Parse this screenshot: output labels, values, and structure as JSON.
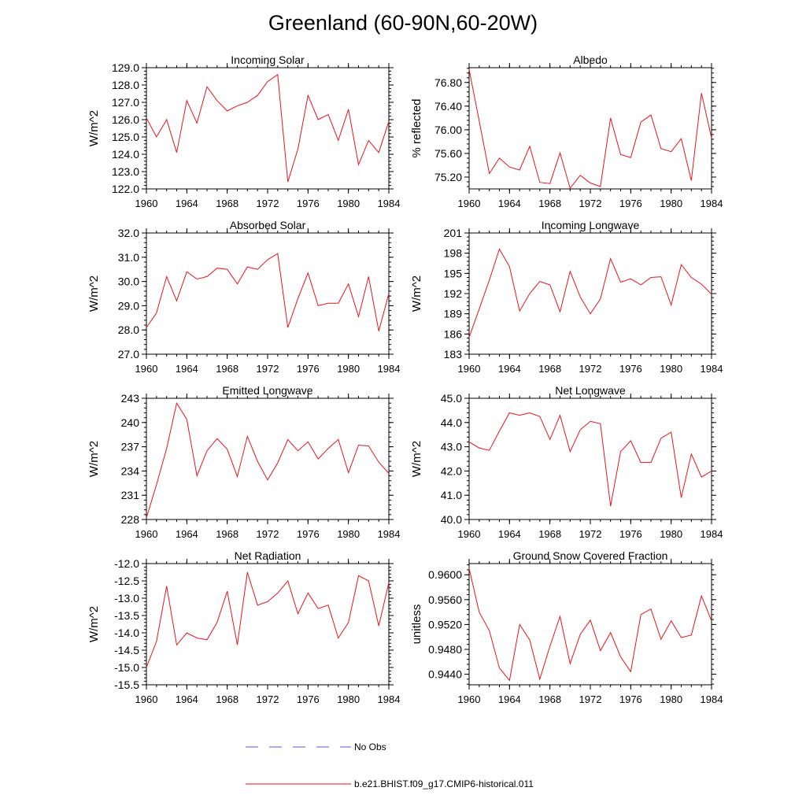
{
  "title": "Greenland (60-90N,60-20W)",
  "legend": {
    "obs_label": "No Obs",
    "model_label": "b.e21.BHIST.f09_g17.CMIP6-historical.011",
    "obs_color": "#5a5ad0",
    "model_color": "#e8141e"
  },
  "chart_data": [
    {
      "type": "line",
      "title": "Incoming Solar",
      "ylabel": "W/m^2",
      "xlim": [
        1960,
        1984
      ],
      "ylim": [
        122.0,
        129.0
      ],
      "yticks": [
        "122.0",
        "123.0",
        "124.0",
        "125.0",
        "126.0",
        "127.0",
        "128.0",
        "129.0"
      ],
      "xticks": [
        "1960",
        "1964",
        "1968",
        "1972",
        "1976",
        "1980",
        "1984"
      ],
      "x": [
        1960,
        1961,
        1962,
        1963,
        1964,
        1965,
        1966,
        1967,
        1968,
        1969,
        1970,
        1971,
        1972,
        1973,
        1974,
        1975,
        1976,
        1977,
        1978,
        1979,
        1980,
        1981,
        1982,
        1983,
        1984
      ],
      "series": [
        {
          "values": [
            126.1,
            125.0,
            126.0,
            124.1,
            127.1,
            125.8,
            127.9,
            127.1,
            126.5,
            126.8,
            127.0,
            127.4,
            128.2,
            128.6,
            122.4,
            124.3,
            127.4,
            126.0,
            126.3,
            124.8,
            126.6,
            123.4,
            124.8,
            124.1,
            125.9
          ]
        }
      ]
    },
    {
      "type": "line",
      "title": "Albedo",
      "ylabel": "% reflected",
      "xlim": [
        1960,
        1984
      ],
      "ylim": [
        75.0,
        77.05
      ],
      "yticks": [
        "75.20",
        "75.60",
        "76.00",
        "76.40",
        "76.80"
      ],
      "xticks": [
        "1960",
        "1964",
        "1968",
        "1972",
        "1976",
        "1980",
        "1984"
      ],
      "x": [
        1960,
        1961,
        1962,
        1963,
        1964,
        1965,
        1966,
        1967,
        1968,
        1969,
        1970,
        1971,
        1972,
        1973,
        1974,
        1975,
        1976,
        1977,
        1978,
        1979,
        1980,
        1981,
        1982,
        1983,
        1984
      ],
      "series": [
        {
          "values": [
            77.02,
            76.15,
            75.26,
            75.52,
            75.37,
            75.32,
            75.72,
            75.11,
            75.09,
            75.61,
            75.01,
            75.23,
            75.1,
            75.04,
            76.2,
            75.58,
            75.53,
            76.13,
            76.25,
            75.68,
            75.63,
            75.85,
            75.14,
            76.62,
            75.86
          ]
        }
      ]
    },
    {
      "type": "line",
      "title": "Absorbed Solar",
      "ylabel": "W/m^2",
      "xlim": [
        1960,
        1984
      ],
      "ylim": [
        27.0,
        32.0
      ],
      "yticks": [
        "27.0",
        "28.0",
        "29.0",
        "30.0",
        "31.0",
        "32.0"
      ],
      "xticks": [
        "1960",
        "1964",
        "1968",
        "1972",
        "1976",
        "1980",
        "1984"
      ],
      "x": [
        1960,
        1961,
        1962,
        1963,
        1964,
        1965,
        1966,
        1967,
        1968,
        1969,
        1970,
        1971,
        1972,
        1973,
        1974,
        1975,
        1976,
        1977,
        1978,
        1979,
        1980,
        1981,
        1982,
        1983,
        1984
      ],
      "series": [
        {
          "values": [
            28.1,
            28.7,
            30.2,
            29.2,
            30.4,
            30.1,
            30.2,
            30.55,
            30.5,
            29.9,
            30.6,
            30.5,
            30.9,
            31.15,
            28.1,
            29.3,
            30.35,
            29.0,
            29.1,
            29.1,
            29.9,
            28.55,
            30.2,
            27.95,
            29.5
          ]
        }
      ]
    },
    {
      "type": "line",
      "title": "Incoming Longwave",
      "ylabel": "W/m^2",
      "xlim": [
        1960,
        1984
      ],
      "ylim": [
        183,
        201
      ],
      "yticks": [
        "183",
        "186",
        "189",
        "192",
        "195",
        "198",
        "201"
      ],
      "xticks": [
        "1960",
        "1964",
        "1968",
        "1972",
        "1976",
        "1980",
        "1984"
      ],
      "x": [
        1960,
        1961,
        1962,
        1963,
        1964,
        1965,
        1966,
        1967,
        1968,
        1969,
        1970,
        1971,
        1972,
        1973,
        1974,
        1975,
        1976,
        1977,
        1978,
        1979,
        1980,
        1981,
        1982,
        1983,
        1984
      ],
      "series": [
        {
          "values": [
            185.5,
            189.7,
            194.0,
            198.6,
            196.0,
            189.4,
            192.0,
            193.8,
            193.3,
            189.3,
            195.3,
            191.5,
            189.0,
            191.2,
            197.2,
            193.7,
            194.2,
            193.3,
            194.4,
            194.5,
            190.3,
            196.3,
            194.4,
            193.4,
            191.9
          ]
        }
      ]
    },
    {
      "type": "line",
      "title": "Emitted Longwave",
      "ylabel": "W/m^2",
      "xlim": [
        1960,
        1984
      ],
      "ylim": [
        228,
        243
      ],
      "yticks": [
        "228",
        "231",
        "234",
        "237",
        "240",
        "243"
      ],
      "xticks": [
        "1960",
        "1964",
        "1968",
        "1972",
        "1976",
        "1980",
        "1984"
      ],
      "x": [
        1960,
        1961,
        1962,
        1963,
        1964,
        1965,
        1966,
        1967,
        1968,
        1969,
        1970,
        1971,
        1972,
        1973,
        1974,
        1975,
        1976,
        1977,
        1978,
        1979,
        1980,
        1981,
        1982,
        1983,
        1984
      ],
      "series": [
        {
          "values": [
            228.2,
            232.3,
            236.8,
            242.4,
            240.4,
            233.4,
            236.5,
            238.0,
            236.7,
            233.3,
            238.3,
            235.2,
            232.9,
            235.0,
            237.9,
            236.5,
            237.6,
            235.5,
            236.8,
            237.9,
            233.8,
            237.2,
            237.1,
            235.1,
            233.7
          ]
        }
      ]
    },
    {
      "type": "line",
      "title": "Net Longwave",
      "ylabel": "W/m^2",
      "xlim": [
        1960,
        1984
      ],
      "ylim": [
        40.0,
        45.0
      ],
      "yticks": [
        "40.0",
        "41.0",
        "42.0",
        "43.0",
        "44.0",
        "45.0"
      ],
      "xticks": [
        "1960",
        "1964",
        "1968",
        "1972",
        "1976",
        "1980",
        "1984"
      ],
      "x": [
        1960,
        1961,
        1962,
        1963,
        1964,
        1965,
        1966,
        1967,
        1968,
        1969,
        1970,
        1971,
        1972,
        1973,
        1974,
        1975,
        1976,
        1977,
        1978,
        1979,
        1980,
        1981,
        1982,
        1983,
        1984
      ],
      "series": [
        {
          "values": [
            43.2,
            42.95,
            42.85,
            43.65,
            44.4,
            44.3,
            44.4,
            44.25,
            43.3,
            44.3,
            42.8,
            43.7,
            44.05,
            43.95,
            40.55,
            42.8,
            43.25,
            42.35,
            42.35,
            43.35,
            43.6,
            40.9,
            42.7,
            41.75,
            42.0
          ]
        }
      ]
    },
    {
      "type": "line",
      "title": "Net Radiation",
      "ylabel": "W/m^2",
      "xlim": [
        1960,
        1984
      ],
      "ylim": [
        -15.5,
        -12.0
      ],
      "yticks": [
        "-15.5",
        "-15.0",
        "-14.5",
        "-14.0",
        "-13.5",
        "-13.0",
        "-12.5",
        "-12.0"
      ],
      "xticks": [
        "1960",
        "1964",
        "1968",
        "1972",
        "1976",
        "1980",
        "1984"
      ],
      "x": [
        1960,
        1961,
        1962,
        1963,
        1964,
        1965,
        1966,
        1967,
        1968,
        1969,
        1970,
        1971,
        1972,
        1973,
        1974,
        1975,
        1976,
        1977,
        1978,
        1979,
        1980,
        1981,
        1982,
        1983,
        1984
      ],
      "series": [
        {
          "values": [
            -15.0,
            -14.25,
            -12.65,
            -14.35,
            -14.0,
            -14.15,
            -14.2,
            -13.7,
            -12.8,
            -14.35,
            -12.25,
            -13.2,
            -13.1,
            -12.85,
            -12.5,
            -13.45,
            -12.85,
            -13.3,
            -13.2,
            -14.15,
            -13.7,
            -12.35,
            -12.5,
            -13.8,
            -12.55
          ]
        }
      ]
    },
    {
      "type": "line",
      "title": "Ground Snow Covered Fraction",
      "ylabel": "unitless",
      "xlim": [
        1960,
        1984
      ],
      "ylim": [
        0.9423,
        0.9618
      ],
      "yticks": [
        "0.9440",
        "0.9480",
        "0.9520",
        "0.9560",
        "0.9600"
      ],
      "xticks": [
        "1960",
        "1964",
        "1968",
        "1972",
        "1976",
        "1980",
        "1984"
      ],
      "x": [
        1960,
        1961,
        1962,
        1963,
        1964,
        1965,
        1966,
        1967,
        1968,
        1969,
        1970,
        1971,
        1972,
        1973,
        1974,
        1975,
        1976,
        1977,
        1978,
        1979,
        1980,
        1981,
        1982,
        1983,
        1984
      ],
      "series": [
        {
          "values": [
            0.961,
            0.954,
            0.951,
            0.945,
            0.943,
            0.952,
            0.9495,
            0.9432,
            0.9485,
            0.9533,
            0.9457,
            0.9504,
            0.9527,
            0.9478,
            0.9507,
            0.9468,
            0.9444,
            0.9536,
            0.9545,
            0.9496,
            0.9526,
            0.9499,
            0.9503,
            0.9566,
            0.9526
          ]
        }
      ]
    }
  ]
}
